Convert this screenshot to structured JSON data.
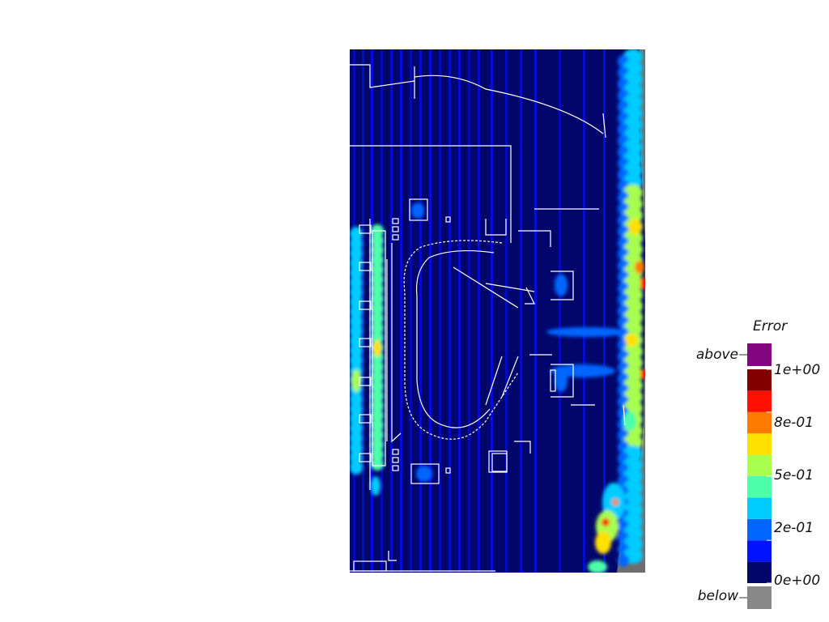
{
  "chart_data": {
    "type": "heatmap",
    "title": "",
    "colorbar": {
      "title": "Error",
      "tick_labels": [
        "1e+00",
        "8e-01",
        "5e-01",
        "2e-01",
        "0e+00"
      ],
      "tick_values": [
        1.0,
        0.8,
        0.5,
        0.2,
        0.0
      ],
      "range": [
        0,
        1
      ],
      "above_label": "above",
      "below_label": "below",
      "above_color": "#80057f",
      "below_color": "#888888",
      "bins": [
        {
          "from": 0.0,
          "to": 0.1,
          "color": "#02066b"
        },
        {
          "from": 0.1,
          "to": 0.2,
          "color": "#0012ff"
        },
        {
          "from": 0.2,
          "to": 0.3,
          "color": "#0066ff"
        },
        {
          "from": 0.3,
          "to": 0.4,
          "color": "#00ccff"
        },
        {
          "from": 0.4,
          "to": 0.5,
          "color": "#4dffa8"
        },
        {
          "from": 0.5,
          "to": 0.6,
          "color": "#a8ff4d"
        },
        {
          "from": 0.6,
          "to": 0.7,
          "color": "#ffe000"
        },
        {
          "from": 0.7,
          "to": 0.8,
          "color": "#ff7b00"
        },
        {
          "from": 0.8,
          "to": 0.9,
          "color": "#ff1100"
        },
        {
          "from": 0.9,
          "to": 1.0,
          "color": "#800000"
        }
      ]
    },
    "field": {
      "background_value": 0.03,
      "no_data_color": "#6e6e6e",
      "high_error_regions": [
        "right boundary",
        "left plate column",
        "lower-right corner"
      ]
    }
  }
}
